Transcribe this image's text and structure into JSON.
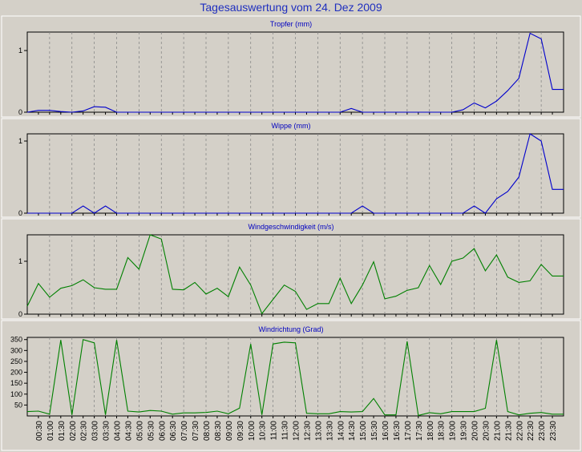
{
  "title": "Tagesauswertung vom 24. Dez 2009",
  "chart_data": [
    {
      "type": "line",
      "title": "Tropfer (mm)",
      "color": "#0000cc",
      "ylim": [
        0,
        1.3
      ],
      "yticks": [
        0,
        1
      ],
      "x": [
        "00:00",
        "00:30",
        "01:00",
        "01:30",
        "02:00",
        "02:30",
        "03:00",
        "03:30",
        "04:00",
        "04:30",
        "05:00",
        "05:30",
        "06:00",
        "06:30",
        "07:00",
        "07:30",
        "08:00",
        "08:30",
        "09:00",
        "09:30",
        "10:00",
        "10:30",
        "11:00",
        "11:30",
        "12:00",
        "12:30",
        "13:00",
        "13:30",
        "14:00",
        "14:30",
        "15:00",
        "15:30",
        "16:00",
        "16:30",
        "17:00",
        "17:30",
        "18:00",
        "18:30",
        "19:00",
        "19:30",
        "20:00",
        "20:30",
        "21:00",
        "21:30",
        "22:00",
        "22:30",
        "23:00",
        "23:30",
        "24:00"
      ],
      "values": [
        0,
        0.03,
        0.03,
        0.01,
        0,
        0.02,
        0.09,
        0.08,
        0,
        0,
        0,
        0,
        0,
        0,
        0,
        0,
        0,
        0,
        0,
        0,
        0,
        0,
        0,
        0,
        0,
        0,
        0,
        0,
        0,
        0.06,
        0,
        0,
        0,
        0,
        0,
        0,
        0,
        0,
        0,
        0.04,
        0.15,
        0.07,
        0.18,
        0.35,
        0.55,
        1.28,
        1.19,
        0.37,
        0.37
      ],
      "grid": true
    },
    {
      "type": "line",
      "title": "Wippe (mm)",
      "color": "#0000cc",
      "ylim": [
        0,
        1.1
      ],
      "yticks": [
        0,
        1
      ],
      "x": [
        "00:00",
        "00:30",
        "01:00",
        "01:30",
        "02:00",
        "02:30",
        "03:00",
        "03:30",
        "04:00",
        "04:30",
        "05:00",
        "05:30",
        "06:00",
        "06:30",
        "07:00",
        "07:30",
        "08:00",
        "08:30",
        "09:00",
        "09:30",
        "10:00",
        "10:30",
        "11:00",
        "11:30",
        "12:00",
        "12:30",
        "13:00",
        "13:30",
        "14:00",
        "14:30",
        "15:00",
        "15:30",
        "16:00",
        "16:30",
        "17:00",
        "17:30",
        "18:00",
        "18:30",
        "19:00",
        "19:30",
        "20:00",
        "20:30",
        "21:00",
        "21:30",
        "22:00",
        "22:30",
        "23:00",
        "23:30",
        "24:00"
      ],
      "values": [
        0,
        0,
        0,
        0,
        0,
        0.1,
        0,
        0.1,
        0,
        0,
        0,
        0,
        0,
        0,
        0,
        0,
        0,
        0,
        0,
        0,
        0,
        0,
        0,
        0,
        0,
        0,
        0,
        0,
        0,
        0,
        0.1,
        0,
        0,
        0,
        0,
        0,
        0,
        0,
        0,
        0,
        0.1,
        0,
        0.2,
        0.3,
        0.5,
        1.1,
        1.0,
        0.33,
        0.33
      ],
      "grid": true
    },
    {
      "type": "line",
      "title": "Windgeschwindigkeit (m/s)",
      "color": "#008000",
      "ylim": [
        0,
        1.5
      ],
      "yticks": [
        0,
        1
      ],
      "x": [
        "00:00",
        "00:30",
        "01:00",
        "01:30",
        "02:00",
        "02:30",
        "03:00",
        "03:30",
        "04:00",
        "04:30",
        "05:00",
        "05:30",
        "06:00",
        "06:30",
        "07:00",
        "07:30",
        "08:00",
        "08:30",
        "09:00",
        "09:30",
        "10:00",
        "10:30",
        "11:00",
        "11:30",
        "12:00",
        "12:30",
        "13:00",
        "13:30",
        "14:00",
        "14:30",
        "15:00",
        "15:30",
        "16:00",
        "16:30",
        "17:00",
        "17:30",
        "18:00",
        "18:30",
        "19:00",
        "19:30",
        "20:00",
        "20:30",
        "21:00",
        "21:30",
        "22:00",
        "22:30",
        "23:00",
        "23:30",
        "24:00"
      ],
      "values": [
        0.15,
        0.58,
        0.32,
        0.49,
        0.54,
        0.65,
        0.5,
        0.47,
        0.47,
        1.07,
        0.85,
        1.5,
        1.42,
        0.47,
        0.46,
        0.6,
        0.38,
        0.49,
        0.33,
        0.89,
        0.55,
        0.01,
        0.28,
        0.55,
        0.43,
        0.09,
        0.2,
        0.2,
        0.68,
        0.2,
        0.55,
        0.99,
        0.29,
        0.34,
        0.45,
        0.5,
        0.92,
        0.56,
        1.0,
        1.06,
        1.24,
        0.82,
        1.12,
        0.7,
        0.6,
        0.63,
        0.94,
        0.72,
        0.72
      ],
      "grid": true
    },
    {
      "type": "line",
      "title": "Windrichtung (Grad)",
      "color": "#008000",
      "ylim": [
        0,
        360
      ],
      "yticks": [
        50,
        100,
        150,
        200,
        250,
        300,
        350
      ],
      "x": [
        "00:00",
        "00:30",
        "01:00",
        "01:30",
        "02:00",
        "02:30",
        "03:00",
        "03:30",
        "04:00",
        "04:30",
        "05:00",
        "05:30",
        "06:00",
        "06:30",
        "07:00",
        "07:30",
        "08:00",
        "08:30",
        "09:00",
        "09:30",
        "10:00",
        "10:30",
        "11:00",
        "11:30",
        "12:00",
        "12:30",
        "13:00",
        "13:30",
        "14:00",
        "14:30",
        "15:00",
        "15:30",
        "16:00",
        "16:30",
        "17:00",
        "17:30",
        "18:00",
        "18:30",
        "19:00",
        "19:30",
        "20:00",
        "20:30",
        "21:00",
        "21:30",
        "22:00",
        "22:30",
        "23:00",
        "23:30",
        "24:00"
      ],
      "values": [
        20,
        22,
        8,
        348,
        5,
        350,
        335,
        5,
        348,
        22,
        18,
        25,
        22,
        8,
        14,
        14,
        16,
        22,
        10,
        36,
        330,
        5,
        330,
        338,
        335,
        12,
        10,
        10,
        20,
        18,
        20,
        80,
        5,
        5,
        342,
        2,
        15,
        10,
        20,
        20,
        20,
        35,
        348,
        20,
        5,
        12,
        16,
        8,
        8
      ],
      "grid": true
    }
  ],
  "xaxis": {
    "tick_labels": [
      "00:30",
      "01:00",
      "01:30",
      "02:00",
      "02:30",
      "03:00",
      "03:30",
      "04:00",
      "04:30",
      "05:00",
      "05:30",
      "06:00",
      "06:30",
      "07:00",
      "07:30",
      "08:00",
      "08:30",
      "09:00",
      "09:30",
      "10:00",
      "10:30",
      "11:00",
      "11:30",
      "12:00",
      "12:30",
      "13:00",
      "13:30",
      "14:00",
      "14:30",
      "15:00",
      "15:30",
      "16:00",
      "16:30",
      "17:00",
      "17:30",
      "18:00",
      "18:30",
      "19:00",
      "19:30",
      "20:00",
      "20:30",
      "21:00",
      "21:30",
      "22:00",
      "22:30",
      "23:00",
      "23:30"
    ]
  }
}
